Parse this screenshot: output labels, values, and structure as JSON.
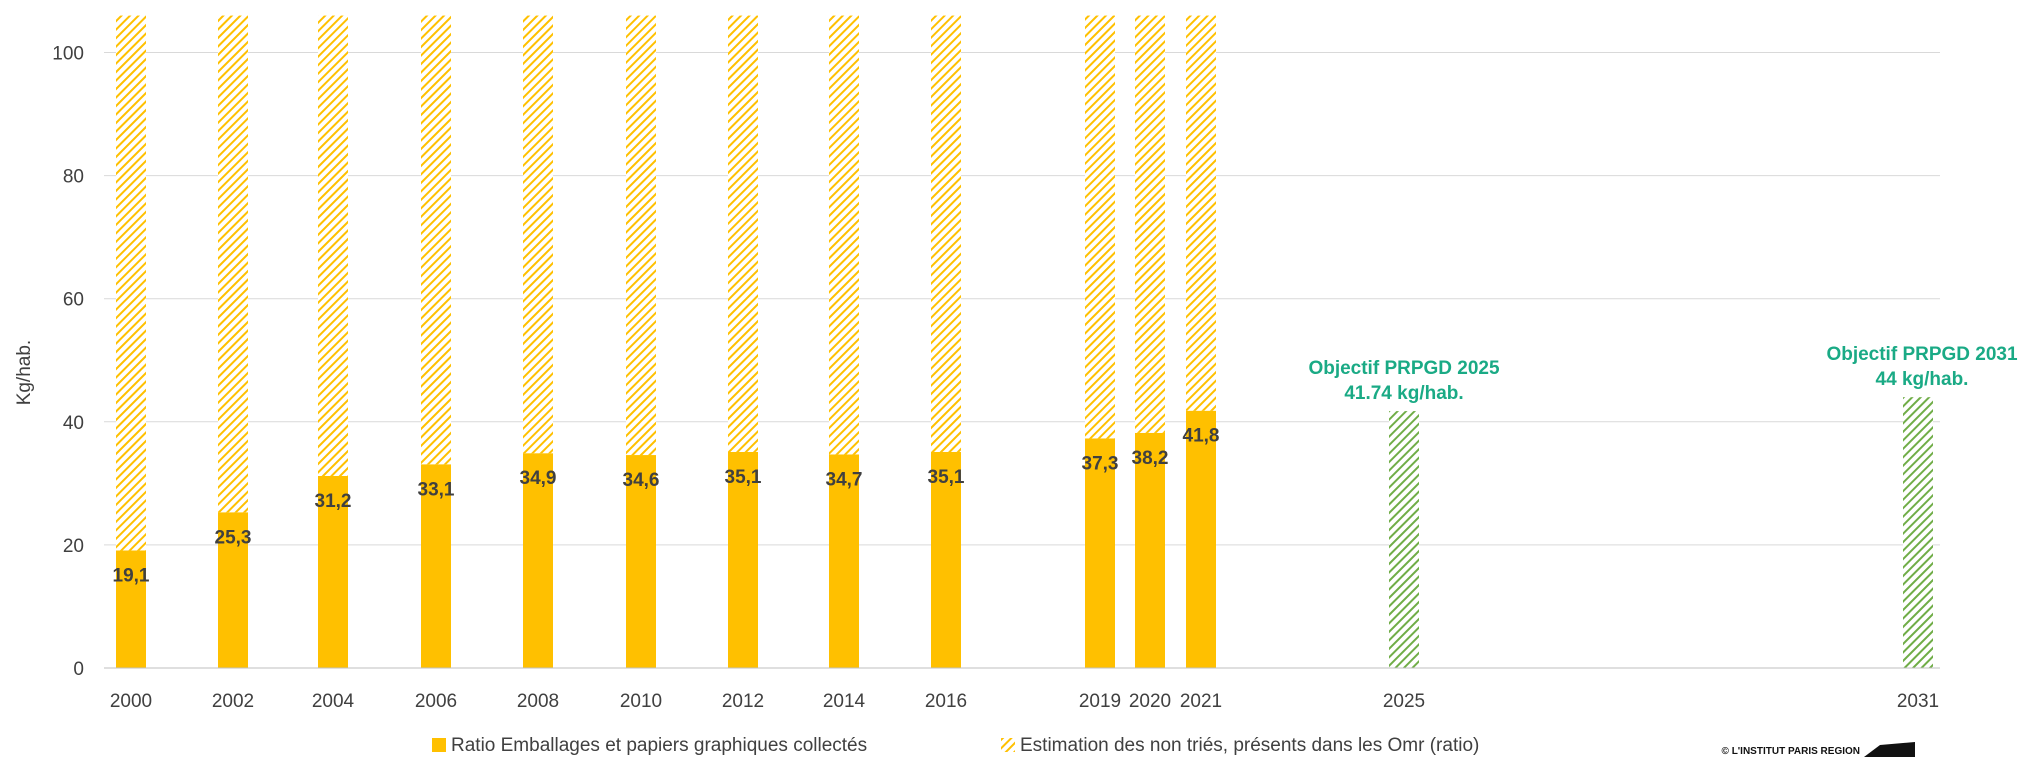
{
  "chart_data": {
    "type": "bar",
    "ylabel": "Kg/hab.",
    "ylim": [
      0,
      105
    ],
    "yticks": [
      0,
      20,
      40,
      60,
      80,
      100
    ],
    "grid": true,
    "legend_position": "bottom",
    "categories": [
      "2000",
      "2002",
      "2004",
      "2006",
      "2008",
      "2010",
      "2012",
      "2014",
      "2016",
      "2019",
      "2020",
      "2021",
      "2025",
      "2031"
    ],
    "series": [
      {
        "name": "Ratio Emballages et papiers graphiques collectés",
        "color": "#ffc000",
        "values": [
          19.1,
          25.3,
          31.2,
          33.1,
          34.9,
          34.6,
          35.1,
          34.7,
          35.1,
          37.3,
          38.2,
          41.8,
          null,
          null
        ],
        "labels": [
          "19,1",
          "25,3",
          "31,2",
          "33,1",
          "34,9",
          "34,6",
          "35,1",
          "34,7",
          "35,1",
          "37,3",
          "38,2",
          "41,8",
          "",
          ""
        ]
      },
      {
        "name": "Estimation des non triés, présents dans les Omr (ratio)",
        "color": "#ffc000",
        "pattern": "hatched",
        "values": [
          86.9,
          80.7,
          74.8,
          72.9,
          71.1,
          71.4,
          70.9,
          71.3,
          70.9,
          68.7,
          67.8,
          64.2,
          null,
          null
        ]
      }
    ],
    "targets": [
      {
        "category": "2025",
        "value": 41.74,
        "color": "#70ad47",
        "pattern": "hatched",
        "line1": "Objectif PRPGD 2025",
        "line2": "41.74 kg/hab.",
        "label_color": "#1aaa85"
      },
      {
        "category": "2031",
        "value": 44,
        "color": "#70ad47",
        "pattern": "hatched",
        "line1": "Objectif PRPGD 2031",
        "line2": "44 kg/hab.",
        "label_color": "#1aaa85"
      }
    ]
  },
  "credit": "© L'INSTITUT PARIS REGION"
}
